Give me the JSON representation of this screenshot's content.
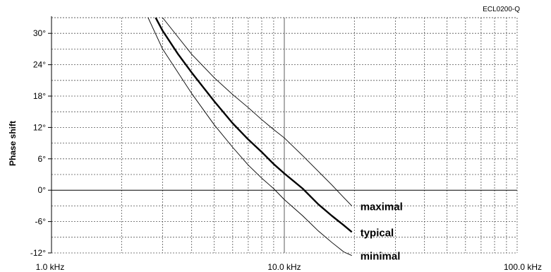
{
  "chart_data": {
    "type": "line",
    "chart_code": "ECL0200-Q",
    "ylabel": "Phase shift",
    "xlabel": "",
    "x_scale": "log",
    "xlim": [
      1.0,
      100.0
    ],
    "ylim": [
      -12,
      33
    ],
    "x_ticks": [
      1.0,
      10.0,
      100.0
    ],
    "x_tick_labels": [
      "1.0 kHz",
      "10.0 kHz",
      "100.0 kHz"
    ],
    "y_ticks": [
      -12,
      -6,
      0,
      6,
      12,
      18,
      24,
      30
    ],
    "y_tick_labels": [
      "-12°",
      "-6°",
      "0°",
      "6°",
      "12°",
      "18°",
      "24°",
      "30°"
    ],
    "grid": true,
    "series": [
      {
        "name": "maximal",
        "style": "thin",
        "x": [
          3.0,
          4.0,
          5.0,
          6.0,
          7.0,
          8.0,
          9.0,
          10.0,
          12.0,
          14.0,
          16.0,
          18.0,
          19.5
        ],
        "y": [
          33.0,
          26.0,
          21.5,
          18.3,
          15.8,
          13.5,
          11.6,
          10.0,
          6.6,
          3.6,
          1.0,
          -1.4,
          -3.0
        ]
      },
      {
        "name": "typical",
        "style": "bold",
        "x": [
          2.8,
          3.0,
          3.5,
          4.0,
          5.0,
          6.0,
          7.0,
          8.0,
          9.0,
          10.0,
          12.0,
          14.0,
          16.0,
          18.0,
          19.5
        ],
        "y": [
          33.0,
          30.5,
          26.0,
          22.5,
          17.0,
          12.8,
          9.7,
          7.3,
          5.0,
          3.2,
          0.3,
          -2.7,
          -4.9,
          -6.7,
          -8.0
        ]
      },
      {
        "name": "minimal",
        "style": "thin",
        "x": [
          2.6,
          3.0,
          4.0,
          5.0,
          6.0,
          7.0,
          8.0,
          9.0,
          10.0,
          12.0,
          14.0,
          16.0,
          18.0,
          19.5
        ],
        "y": [
          33.0,
          27.0,
          18.5,
          12.5,
          8.2,
          4.8,
          2.3,
          0.3,
          -1.8,
          -4.9,
          -7.8,
          -10.0,
          -11.8,
          -12.5
        ]
      }
    ]
  }
}
